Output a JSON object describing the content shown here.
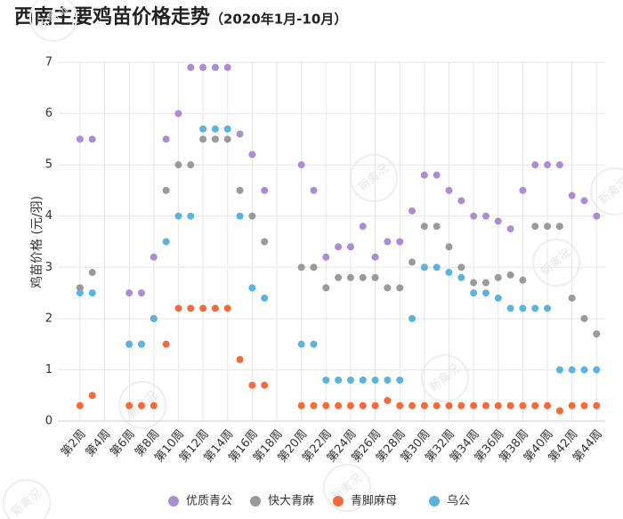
{
  "chart_data": {
    "type": "line",
    "title": "西南主要鸡苗价格走势",
    "subtitle": "（2020年1月-10月）",
    "y_label": "鸡苗价格 (元/羽)",
    "watermark": "新禽况",
    "x": [
      2,
      3,
      6,
      7,
      8,
      9,
      10,
      11,
      12,
      13,
      14,
      15,
      16,
      17,
      20,
      21,
      22,
      23,
      24,
      25,
      26,
      27,
      28,
      29,
      30,
      31,
      32,
      33,
      34,
      35,
      36,
      37,
      38,
      39,
      40,
      41,
      42,
      43,
      44
    ],
    "xlim": [
      0.2,
      44.7
    ],
    "xticks": [
      {
        "value": 2,
        "label": "第2周"
      },
      {
        "value": 4,
        "label": "第4周"
      },
      {
        "value": 6,
        "label": "第6周"
      },
      {
        "value": 8,
        "label": "第8周"
      },
      {
        "value": 10,
        "label": "第10周"
      },
      {
        "value": 12,
        "label": "第12周"
      },
      {
        "value": 14,
        "label": "第14周"
      },
      {
        "value": 16,
        "label": "第16周"
      },
      {
        "value": 18,
        "label": "第18周"
      },
      {
        "value": 20,
        "label": "第20周"
      },
      {
        "value": 22,
        "label": "第22周"
      },
      {
        "value": 24,
        "label": "第24周"
      },
      {
        "value": 26,
        "label": "第26周"
      },
      {
        "value": 28,
        "label": "第28周"
      },
      {
        "value": 30,
        "label": "第30周"
      },
      {
        "value": 32,
        "label": "第32周"
      },
      {
        "value": 34,
        "label": "第34周"
      },
      {
        "value": 36,
        "label": "第36周"
      },
      {
        "value": 38,
        "label": "第38周"
      },
      {
        "value": 40,
        "label": "第40周"
      },
      {
        "value": 42,
        "label": "第42周"
      },
      {
        "value": 44,
        "label": "第44周"
      }
    ],
    "ylim": [
      0,
      7
    ],
    "yticks": [
      0,
      1,
      2,
      3,
      4,
      5,
      6,
      7
    ],
    "grid": true,
    "legend": "bottom",
    "series": [
      {
        "name": "优质青公",
        "color": "#a98fd0",
        "values": [
          5.5,
          5.5,
          2.5,
          2.5,
          3.2,
          5.5,
          6.0,
          6.9,
          6.9,
          6.9,
          6.9,
          5.6,
          5.2,
          4.5,
          5.0,
          4.5,
          3.2,
          3.4,
          3.4,
          3.8,
          3.2,
          3.5,
          3.5,
          4.1,
          4.8,
          4.8,
          4.5,
          4.3,
          4.0,
          4.0,
          3.9,
          3.75,
          4.5,
          5.0,
          5.0,
          5.0,
          4.4,
          4.3,
          4.0
        ]
      },
      {
        "name": "快大青麻",
        "color": "#9a9a9a",
        "values": [
          2.6,
          2.9,
          1.5,
          1.5,
          2.0,
          4.5,
          5.0,
          5.0,
          5.5,
          5.5,
          5.5,
          4.5,
          4.0,
          3.5,
          3.0,
          3.0,
          2.6,
          2.8,
          2.8,
          2.8,
          2.8,
          2.6,
          2.6,
          3.1,
          3.8,
          3.8,
          3.4,
          3.0,
          2.7,
          2.7,
          2.8,
          2.85,
          2.75,
          3.8,
          3.8,
          3.8,
          2.4,
          2.0,
          1.7
        ]
      },
      {
        "name": "青脚麻母",
        "color": "#f26b3a",
        "values": [
          0.3,
          0.5,
          0.3,
          0.3,
          0.3,
          1.5,
          2.2,
          2.2,
          2.2,
          2.2,
          2.2,
          1.2,
          0.7,
          0.7,
          0.3,
          0.3,
          0.3,
          0.3,
          0.3,
          0.3,
          0.3,
          0.4,
          0.3,
          0.3,
          0.3,
          0.3,
          0.3,
          0.3,
          0.3,
          0.3,
          0.3,
          0.3,
          0.3,
          0.3,
          0.3,
          0.2,
          0.3,
          0.3,
          0.3
        ]
      },
      {
        "name": "乌公",
        "color": "#5ab4dc",
        "values": [
          2.5,
          2.5,
          1.5,
          1.5,
          2.0,
          3.5,
          4.0,
          4.0,
          5.7,
          5.7,
          5.7,
          4.0,
          2.6,
          2.4,
          1.5,
          1.5,
          0.8,
          0.8,
          0.8,
          0.8,
          0.8,
          0.8,
          0.8,
          2.0,
          3.0,
          3.0,
          2.9,
          2.8,
          2.5,
          2.5,
          2.4,
          2.2,
          2.2,
          2.2,
          2.2,
          1.0,
          1.0,
          1.0,
          1.0
        ]
      }
    ]
  }
}
